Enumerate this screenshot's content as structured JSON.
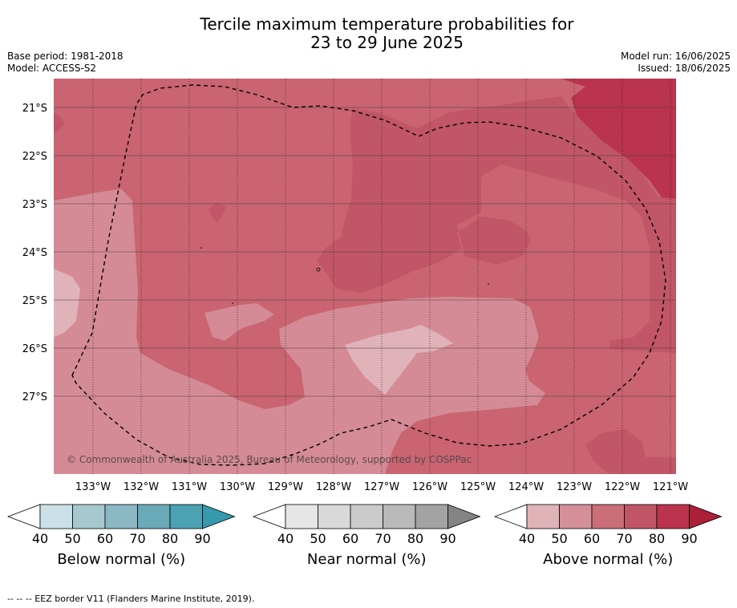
{
  "title": {
    "line1": "Tercile maximum temperature probabilities for",
    "line2": "23 to 29 June 2025"
  },
  "meta": {
    "base_period": "Base period: 1981-2018",
    "model": "Model: ACCESS-S2",
    "model_run": "Model run: 16/06/2025",
    "issued": "Issued: 18/06/2025"
  },
  "map": {
    "lat_labels": [
      "21°S",
      "22°S",
      "23°S",
      "24°S",
      "25°S",
      "26°S",
      "27°S"
    ],
    "lon_labels": [
      "133°W",
      "132°W",
      "131°W",
      "130°W",
      "129°W",
      "128°W",
      "127°W",
      "126°W",
      "125°W",
      "124°W",
      "123°W",
      "122°W",
      "121°W"
    ],
    "copyright": "© Commonwealth of Australia 2025, Bureau of Meteorology, supported by COSPPac",
    "colors": {
      "above_90": "#b9344c",
      "above_80": "#c96470",
      "above_70": "#d48b95",
      "above_60": "#dfb3b9"
    }
  },
  "legends": [
    {
      "title": "Below normal (%)",
      "ticks": [
        "40",
        "50",
        "60",
        "70",
        "80",
        "90"
      ],
      "colors": [
        "#ffffff",
        "#c9e1e7",
        "#a8c8cf",
        "#8ab8c4",
        "#6aaab8",
        "#4aa2b2",
        "#3699ad"
      ]
    },
    {
      "title": "Near normal (%)",
      "ticks": [
        "40",
        "50",
        "60",
        "70",
        "80",
        "90"
      ],
      "colors": [
        "#ffffff",
        "#e6e6e6",
        "#d9d9d9",
        "#cbcbcb",
        "#b9b9b9",
        "#a3a3a3",
        "#848484"
      ]
    },
    {
      "title": "Above normal (%)",
      "ticks": [
        "40",
        "50",
        "60",
        "70",
        "80",
        "90"
      ],
      "colors": [
        "#ffffff",
        "#e0b3b9",
        "#d48f98",
        "#ca6e78",
        "#c05666",
        "#b9344c",
        "#ab1f38"
      ]
    }
  ],
  "footnote": "--  --  -- EEZ border V11 (Flanders Marine Institute, 2019)."
}
